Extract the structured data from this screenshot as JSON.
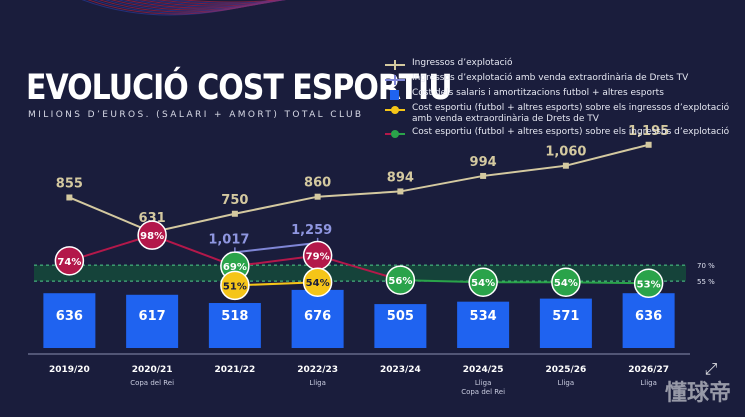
{
  "title": "EVOLUCIÓ COST ESPORTIU",
  "subtitle": "MILIONS D’EUROS. (SALARI + AMORT) TOTAL CLUB",
  "watermark": "懂球帝",
  "legend": [
    {
      "id": "ingressos",
      "label": "Ingressos d’explotació",
      "color": "#d4c9a0",
      "kind": "line"
    },
    {
      "id": "ingressos_tv",
      "label": "Ingressos d’explotació amb venda extraordinària de Drets TV",
      "color": "#7f86d6",
      "kind": "line"
    },
    {
      "id": "cost",
      "label": "Cost dels salaris i amortitzacions futbol + altres esports",
      "color": "#1f63f0",
      "kind": "square"
    },
    {
      "id": "ratio_tv",
      "label": "Cost esportiu (futbol + altres esports) sobre els ingressos d’explotació amb venda extraordinària de Drets de TV",
      "color": "#f5c518",
      "kind": "dotline"
    },
    {
      "id": "ratio",
      "label": "Cost esportiu (futbol + altres esports) sobre els ingressos d’explotació",
      "color": "#2aa34a",
      "kind": "dotline_red"
    }
  ],
  "chart_data": {
    "type": "bar",
    "categories": [
      "2019/20",
      "2020/21",
      "2021/22",
      "2022/23",
      "2023/24",
      "2024/25",
      "2025/26",
      "2026/27"
    ],
    "category_notes": [
      "",
      "Copa del Rei",
      "",
      "Lliga",
      "",
      "Lliga\nCopa del Rei",
      "Lliga",
      "Lliga"
    ],
    "series": [
      {
        "name": "Cost dels salaris i amortitzacions futbol + altres esports",
        "kind": "bar",
        "color": "#1f63f0",
        "values": [
          636,
          617,
          518,
          676,
          505,
          534,
          571,
          636
        ]
      },
      {
        "name": "Ingressos d’explotació",
        "kind": "line",
        "color": "#d4c9a0",
        "values": [
          855,
          631,
          750,
          860,
          894,
          994,
          1060,
          1195
        ]
      },
      {
        "name": "Ingressos d’explotació amb venda extraordinària de Drets TV",
        "kind": "line",
        "color": "#7f86d6",
        "values": [
          null,
          null,
          1017,
          1259,
          null,
          null,
          null,
          null
        ]
      },
      {
        "name": "Cost esportiu (futbol + altres esports) sobre els ingressos d’explotació",
        "kind": "ratio",
        "values": [
          74,
          98,
          69,
          79,
          56,
          54,
          54,
          53
        ],
        "labels": [
          "74%",
          "98%",
          "69%",
          "79%",
          "56%",
          "54%",
          "54%",
          "53%"
        ],
        "colors": [
          "#b3184a",
          "#b3184a",
          "#2aa34a",
          "#b3184a",
          "#2aa34a",
          "#2aa34a",
          "#2aa34a",
          "#2aa34a"
        ]
      },
      {
        "name": "Cost esportiu (futbol + altres esports) sobre els ingressos d’explotació amb venda extraordinària de Drets de TV",
        "kind": "ratio_tv",
        "color": "#f5c518",
        "values": [
          null,
          null,
          51,
          54,
          null,
          null,
          null,
          null
        ],
        "labels": [
          "",
          "",
          "51%",
          "54%",
          "",
          "",
          "",
          ""
        ]
      }
    ],
    "bar_labels": [
      "636",
      "617",
      "518",
      "676",
      "505",
      "534",
      "571",
      "636"
    ],
    "line_labels": [
      "855",
      "631",
      "750",
      "860",
      "894",
      "994",
      "1,060",
      "1,195"
    ],
    "line_tv_labels": [
      "",
      "",
      "1,017",
      "1,259",
      "",
      "",
      "",
      ""
    ],
    "band": {
      "from": 55,
      "to": 70,
      "labels": [
        "70 %",
        "55 %"
      ]
    },
    "xlabel": "",
    "ylabel": ""
  }
}
